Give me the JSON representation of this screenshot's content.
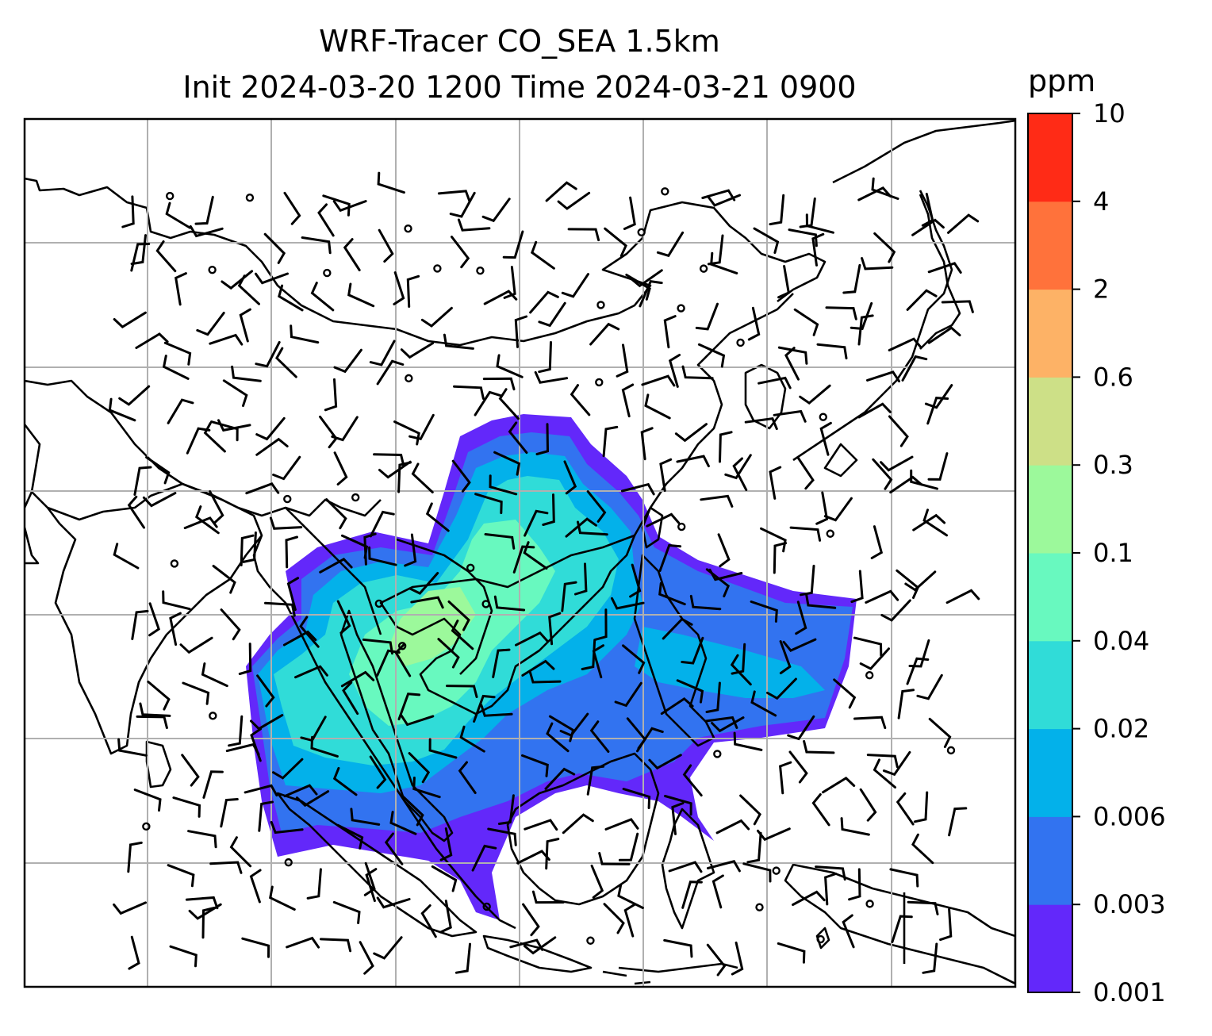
{
  "title": {
    "line1": "WRF-Tracer CO_SEA 1.5km",
    "line2": "Init 2024-03-20 1200 Time 2024-03-21 0900"
  },
  "colorbar": {
    "unit": "ppm",
    "levels": [
      "0.001",
      "0.003",
      "0.006",
      "0.02",
      "0.04",
      "0.1",
      "0.3",
      "0.6",
      "2",
      "4",
      "10"
    ],
    "colors": [
      "#6328fa",
      "#3273f0",
      "#03b1ea",
      "#30dcd8",
      "#68f9bf",
      "#9cf99b",
      "#cde087",
      "#fdb266",
      "#ff723b",
      "#ff2b16"
    ]
  },
  "map": {
    "gridlines": true,
    "ocean_color": "#ffffff",
    "coastline_color": "#000000",
    "plume_note": ""
  }
}
